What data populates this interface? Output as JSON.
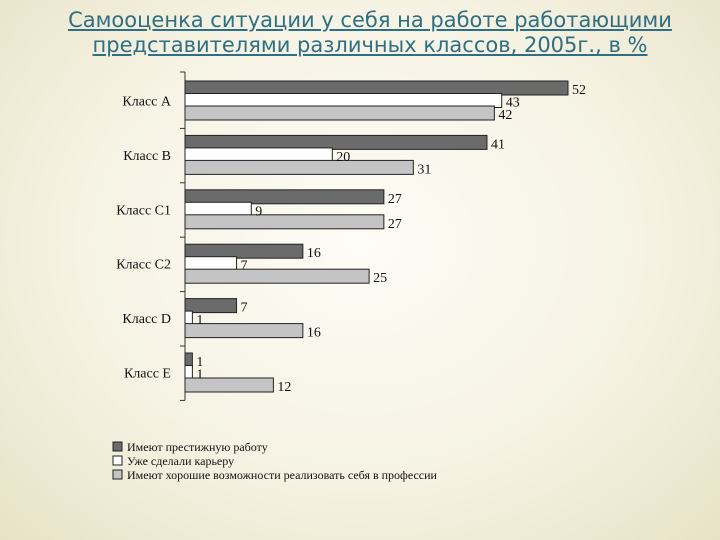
{
  "chart_data": {
    "type": "bar",
    "orientation": "horizontal",
    "title": "Самооценка ситуации у себя на работе работающими представителями различных классов, 2005г., в %",
    "categories": [
      "Класс А",
      "Класс В",
      "Класс С1",
      "Класс С2",
      "Класс D",
      "Класс Е"
    ],
    "series": [
      {
        "name": "Имеют престижную работу",
        "values": [
          52,
          41,
          27,
          16,
          7,
          1
        ],
        "color": "#6b6b6b"
      },
      {
        "name": "Уже сделали карьеру",
        "values": [
          43,
          20,
          9,
          7,
          1,
          1
        ],
        "color": "#ffffff"
      },
      {
        "name": "Имеют хорошие возможности реализовать себя в профессии",
        "values": [
          42,
          31,
          27,
          25,
          16,
          12
        ],
        "color": "#c4c4c4"
      }
    ],
    "xlim": [
      0,
      52
    ],
    "grid": false,
    "legend_position": "bottom-left"
  }
}
